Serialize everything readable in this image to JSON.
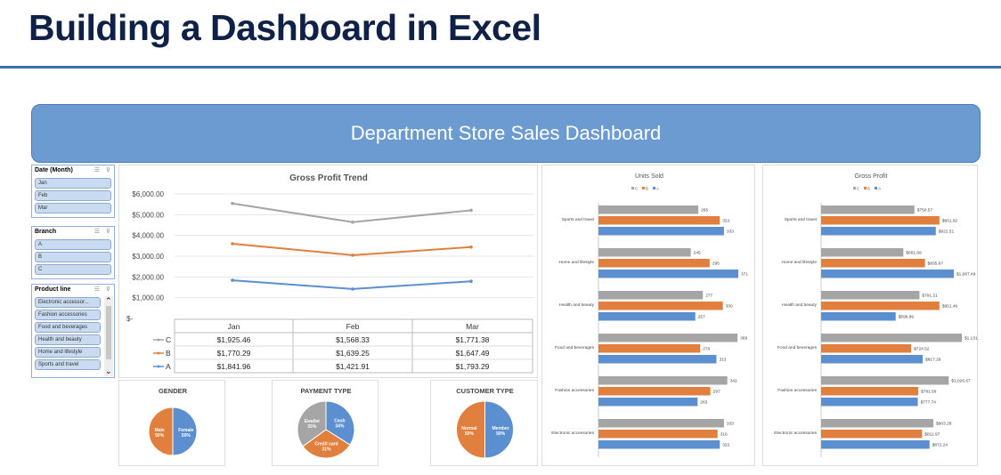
{
  "page_title": "Building a Dashboard in Excel",
  "dashboard_title": "Department Store Sales Dashboard",
  "slicers": [
    {
      "title": "Date (Month)",
      "items": [
        "Jan",
        "Feb",
        "Mar"
      ]
    },
    {
      "title": "Branch",
      "items": [
        "A",
        "B",
        "C"
      ]
    },
    {
      "title": "Product line",
      "items": [
        "Electronic accessor...",
        "Fashion accessories",
        "Food and beverages",
        "Health and beauty",
        "Home and lifestyle",
        "Sports and travel"
      ]
    }
  ],
  "colors": {
    "A": "#5b8fcf",
    "B": "#e07f3e",
    "C": "#a5a5a5"
  },
  "chart_data": [
    {
      "type": "line",
      "title": "Gross Profit Trend",
      "categories": [
        "Jan",
        "Feb",
        "Mar"
      ],
      "ylim": [
        0,
        6000
      ],
      "yticks": [
        "$-",
        "$1,000.00",
        "$2,000.00",
        "$3,000.00",
        "$4,000.00",
        "$5,000.00",
        "$6,000.00"
      ],
      "series": [
        {
          "name": "C",
          "values": [
            5540,
            4640,
            5210
          ],
          "table": [
            "$1,925.46",
            "$1,568.33",
            "$1,771.38"
          ]
        },
        {
          "name": "B",
          "values": [
            3600,
            3050,
            3440
          ],
          "table": [
            "$1,770.29",
            "$1,639.25",
            "$1,647.49"
          ]
        },
        {
          "name": "A",
          "values": [
            1840,
            1420,
            1790
          ],
          "table": [
            "$1,841.96",
            "$1,421.91",
            "$1,793.29"
          ]
        }
      ]
    },
    {
      "type": "bar",
      "title": "Units Sold",
      "legend": [
        "C",
        "B",
        "A"
      ],
      "categories": [
        "Sports and travel",
        "Home and lifestyle",
        "Health and beauty",
        "Food and beverages",
        "Fashion accessories",
        "Electronic accessories"
      ],
      "series": [
        {
          "name": "C",
          "values": [
            265,
            245,
            277,
            369,
            342,
            333
          ]
        },
        {
          "name": "B",
          "values": [
            322,
            295,
            330,
            270,
            297,
            316
          ]
        },
        {
          "name": "A",
          "values": [
            333,
            371,
            257,
            313,
            263,
            322
          ]
        }
      ],
      "labels": {
        "C": [
          "265",
          "245",
          "277",
          "369",
          "342",
          "333"
        ],
        "B": [
          "322",
          "295",
          "330",
          "270",
          "297",
          "316"
        ],
        "A": [
          "333",
          "371",
          "257",
          "313",
          "263",
          "322"
        ]
      }
    },
    {
      "type": "bar",
      "title": "Gross Profit",
      "legend": [
        "C",
        "B",
        "A"
      ],
      "categories": [
        "Sports and travel",
        "Home and lifestyle",
        "Health and beauty",
        "Food and beverages",
        "Fashion accessories",
        "Electronic accessories"
      ],
      "series": [
        {
          "name": "C",
          "values": [
            750.57,
            661.69,
            791.21,
            1131.76,
            1026.67,
            903.28
          ]
        },
        {
          "name": "B",
          "values": [
            951.82,
            835.67,
            951.46,
            724.52,
            781.59,
            811.97
          ]
        },
        {
          "name": "A",
          "values": [
            922.51,
            1067.49,
            599.89,
            817.29,
            777.74,
            872.24
          ]
        }
      ],
      "labels": {
        "C": [
          "$750.57",
          "$661.69",
          "$791.21",
          "$1,131.76",
          "$1,026.67",
          "$903.28"
        ],
        "B": [
          "$951.82",
          "$835.67",
          "$951.46",
          "$724.52",
          "$781.59",
          "$811.97"
        ],
        "A": [
          "$922.51",
          "$1,067.49",
          "$599.89",
          "$817.29",
          "$777.74",
          "$872.24"
        ]
      }
    },
    {
      "type": "pie",
      "title": "GENDER",
      "slices": [
        {
          "label": "Female",
          "pct": "50%",
          "value": 50,
          "color": "#5b8fcf"
        },
        {
          "label": "Male",
          "pct": "50%",
          "value": 50,
          "color": "#e07f3e"
        }
      ]
    },
    {
      "type": "pie",
      "title": "PAYMENT TYPE",
      "slices": [
        {
          "label": "Cash",
          "pct": "34%",
          "value": 34,
          "color": "#5b8fcf"
        },
        {
          "label": "Credit card",
          "pct": "31%",
          "value": 31,
          "color": "#e07f3e"
        },
        {
          "label": "Ewallet",
          "pct": "35%",
          "value": 35,
          "color": "#a5a5a5"
        }
      ]
    },
    {
      "type": "pie",
      "title": "CUSTOMER TYPE",
      "slices": [
        {
          "label": "Member",
          "pct": "50%",
          "value": 50,
          "color": "#5b8fcf"
        },
        {
          "label": "Normal",
          "pct": "50%",
          "value": 50,
          "color": "#e07f3e"
        }
      ]
    }
  ]
}
